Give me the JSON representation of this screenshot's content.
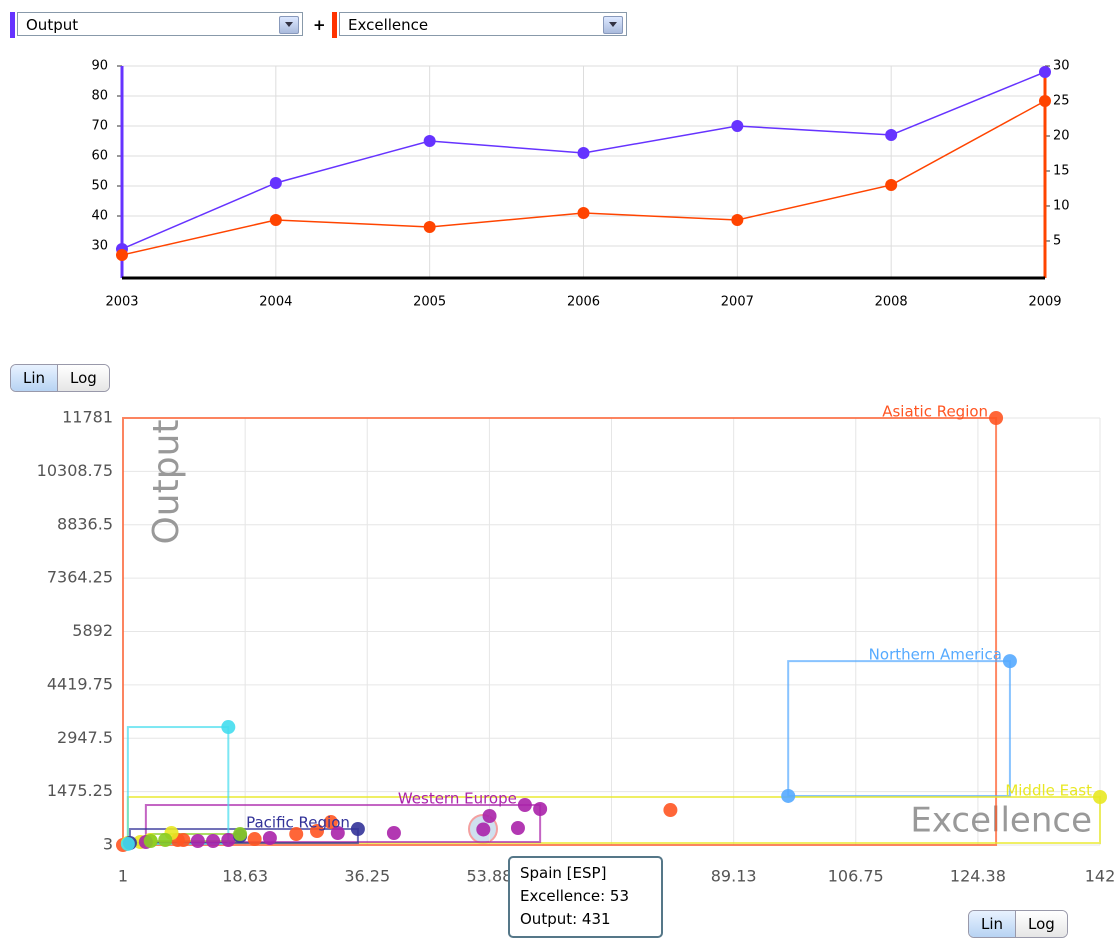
{
  "controls": {
    "metric_1": "Output",
    "joiner": "+",
    "metric_2": "Excellence",
    "scale_top": [
      "Lin",
      "Log"
    ],
    "scale_bottom": [
      "Lin",
      "Log"
    ]
  },
  "tooltip": {
    "lines": [
      "Spain [ESP]",
      "Excellence: 53",
      "Output: 431"
    ]
  },
  "chart_data": [
    {
      "type": "line",
      "categories": [
        "2003",
        "2004",
        "2005",
        "2006",
        "2007",
        "2008",
        "2009"
      ],
      "series": [
        {
          "name": "Output",
          "color": "#6633ff",
          "axis": "y",
          "values": [
            29,
            51,
            65,
            61,
            70,
            67,
            88
          ]
        },
        {
          "name": "Excellence",
          "color": "#ff4400",
          "axis": "y2",
          "values": [
            3,
            8,
            7,
            9,
            8,
            13,
            25
          ]
        }
      ],
      "ylim": [
        19.33,
        90
      ],
      "yticks": [
        30,
        40,
        50,
        60,
        70,
        80,
        90
      ],
      "y2lim": [
        -0.29,
        30
      ],
      "y2ticks": [
        5,
        10,
        15,
        20,
        25,
        30
      ],
      "grid": true
    },
    {
      "type": "scatter",
      "xlabel": "Excellence",
      "ylabel": "Output",
      "log_scale": false,
      "grid": true,
      "xlim": [
        1,
        142
      ],
      "xticks": [
        1,
        18.63,
        36.25,
        53.88,
        71.5,
        89.13,
        106.75,
        124.38,
        142
      ],
      "ylim": [
        3,
        11781
      ],
      "yticks": [
        3,
        1475.25,
        2947.5,
        4419.75,
        5892,
        7364.25,
        8836.5,
        10308.75,
        11781
      ],
      "series": [
        {
          "name": "Asiatic Region",
          "color": "#ff5522",
          "x": [
            127,
            80,
            31,
            29,
            26,
            20,
            9.7,
            8.9,
            1
          ],
          "values": [
            11781,
            968,
            637,
            389,
            306,
            168,
            141,
            141,
            3
          ]
        },
        {
          "name": "Northern America",
          "color": "#55aaff",
          "x": [
            97,
            129
          ],
          "values": [
            1355,
            5075
          ]
        },
        {
          "name": "Middle East",
          "color": "#e8e822",
          "x": [
            142,
            4.9,
            8,
            3.5,
            1.7
          ],
          "values": [
            1327,
            141,
            334,
            86,
            58
          ]
        },
        {
          "name": "Western Europe",
          "color": "#aa22aa",
          "x": [
            59,
            61.2,
            58,
            53.9,
            53,
            40.1,
            32,
            22.2,
            16.2,
            14,
            11.8,
            4.3
          ],
          "values": [
            1106,
            996,
            472,
            803,
            431,
            334,
            334,
            196,
            141,
            113,
            113,
            86
          ]
        },
        {
          "name": "Pacific Region",
          "color": "#333399",
          "x": [
            34.9,
            17.9,
            2
          ],
          "values": [
            444,
            251,
            58
          ]
        },
        {
          "color": "#44ddee",
          "x": [
            16.2,
            1.7
          ],
          "values": [
            3257,
            31
          ]
        },
        {
          "color": "#88cc22",
          "x": [
            17.9,
            7.1,
            5
          ],
          "values": [
            306,
            141,
            113
          ]
        }
      ]
    }
  ]
}
